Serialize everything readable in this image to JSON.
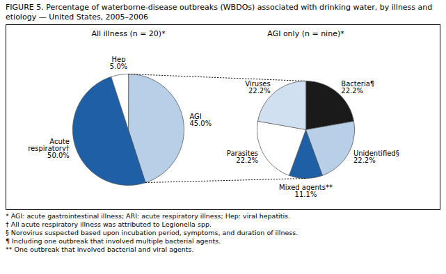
{
  "title": "FIGURE 5. Percentage of waterborne-disease outbreaks (WBDOs) associated with drinking water, by illness and etiology — United States, 2005–2006",
  "annotations": [
    "* AGI: acute gastrointestinal illness; ARI: acute respiratory illness; Hep: viral hepatitis.",
    "† All acute respiratory illness was attributed to Legionella spp.",
    "§ Norovirus suspected based upon incubation period, symptoms, and duration of illness.",
    "¶ Including one outbreak that involved multiple bacterial agents.",
    "** One outbreak that involved bacterial and viral agents."
  ],
  "chart_data": [
    {
      "type": "pie",
      "title": "All illness (n = 20)*",
      "categories": [
        "AGI",
        "Acute respiratory†",
        "Hep"
      ],
      "values": [
        45.0,
        50.0,
        5.0
      ],
      "value_labels": [
        "45.0%",
        "50.0%",
        "5.0%"
      ],
      "colors": [
        "#b8cfe8",
        "#1f5fa6",
        "#ffffff"
      ],
      "data_labels": true
    },
    {
      "type": "pie",
      "title": "AGI only (n = nine)*",
      "categories": [
        "Bacteria¶",
        "Unidentified§",
        "Mixed agents**",
        "Parasites",
        "Viruses"
      ],
      "values": [
        22.2,
        22.2,
        11.1,
        22.2,
        22.2
      ],
      "value_labels": [
        "22.2%",
        "22.2%",
        "11.1%",
        "22.2%",
        "22.2%"
      ],
      "colors": [
        "#1a1a1a",
        "#b8cfe8",
        "#1f5fa6",
        "#ffffff",
        "#d0e0f0"
      ],
      "data_labels": true
    }
  ]
}
